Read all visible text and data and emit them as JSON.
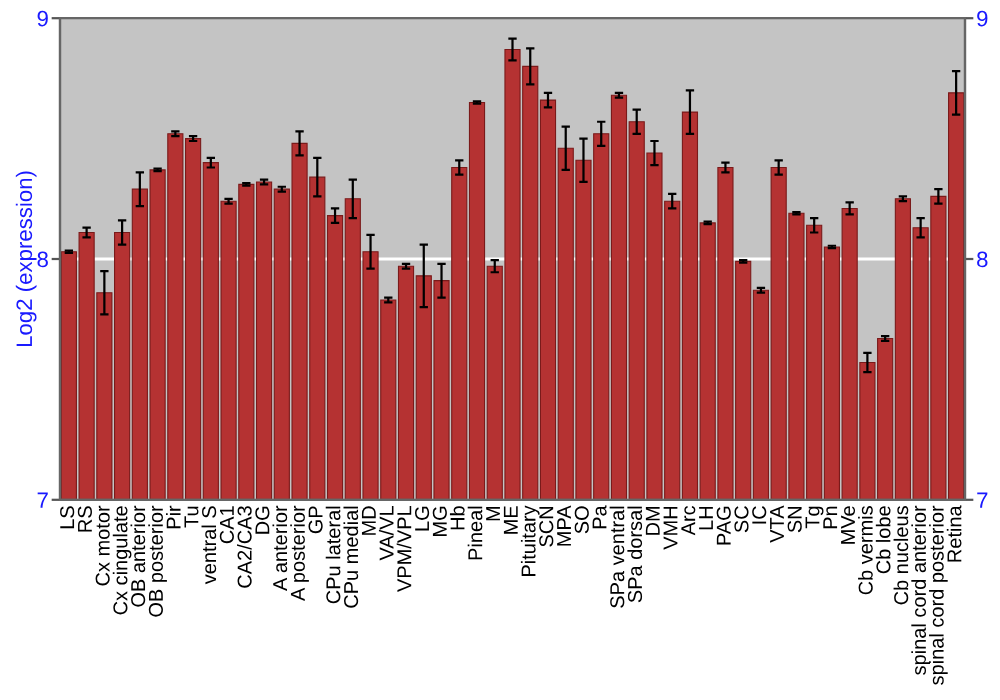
{
  "chart_data": {
    "type": "bar",
    "ylabel": "Log2 (expression)",
    "categories": [
      "LS",
      "RS",
      "Cx motor",
      "Cx cingulate",
      "OB anterior",
      "OB posterior",
      "Pir",
      "Tu",
      "ventral S",
      "CA1",
      "CA2/CA3",
      "DG",
      "A anterior",
      "A posterior",
      "GP",
      "CPu lateral",
      "CPu medial",
      "MD",
      "VA/VL",
      "VPM/VPL",
      "LG",
      "MG",
      "Hb",
      "Pineal",
      "M",
      "ME",
      "Pituitary",
      "SCN",
      "MPA",
      "SO",
      "Pa",
      "SPa ventral",
      "SPa dorsal",
      "DM",
      "VMH",
      "Arc",
      "LH",
      "PAG",
      "SC",
      "IC",
      "VTA",
      "SN",
      "Tg",
      "Pn",
      "MVe",
      "Cb vermis",
      "Cb lobe",
      "Cb nucleus",
      "spinal cord anterior",
      "spinal cord posterior",
      "Retina"
    ],
    "values": [
      8.03,
      8.11,
      7.86,
      8.11,
      8.29,
      8.37,
      8.52,
      8.5,
      8.4,
      8.24,
      8.31,
      8.32,
      8.29,
      8.48,
      8.34,
      8.18,
      8.25,
      8.03,
      7.83,
      7.97,
      7.93,
      7.91,
      8.38,
      8.65,
      7.97,
      8.87,
      8.8,
      8.66,
      8.46,
      8.41,
      8.52,
      8.68,
      8.57,
      8.44,
      8.24,
      8.61,
      8.15,
      8.38,
      7.99,
      7.87,
      8.38,
      8.19,
      8.14,
      8.05,
      8.21,
      7.57,
      7.67,
      8.25,
      8.13,
      8.26,
      8.69
    ],
    "errors": [
      0.005,
      0.02,
      0.09,
      0.05,
      0.07,
      0.005,
      0.01,
      0.01,
      0.02,
      0.01,
      0.005,
      0.01,
      0.01,
      0.05,
      0.08,
      0.03,
      0.08,
      0.07,
      0.01,
      0.01,
      0.13,
      0.07,
      0.03,
      0.005,
      0.025,
      0.045,
      0.075,
      0.03,
      0.09,
      0.09,
      0.05,
      0.01,
      0.05,
      0.05,
      0.03,
      0.09,
      0.005,
      0.02,
      0.005,
      0.01,
      0.03,
      0.005,
      0.03,
      0.005,
      0.025,
      0.04,
      0.01,
      0.01,
      0.04,
      0.03,
      0.09
    ],
    "color": "#b53232",
    "ylim": [
      7,
      9
    ],
    "yticks": [
      7,
      8,
      9
    ],
    "y2lim": [
      7,
      9
    ],
    "y2ticks": [
      7,
      8,
      9
    ],
    "grid": "y"
  }
}
